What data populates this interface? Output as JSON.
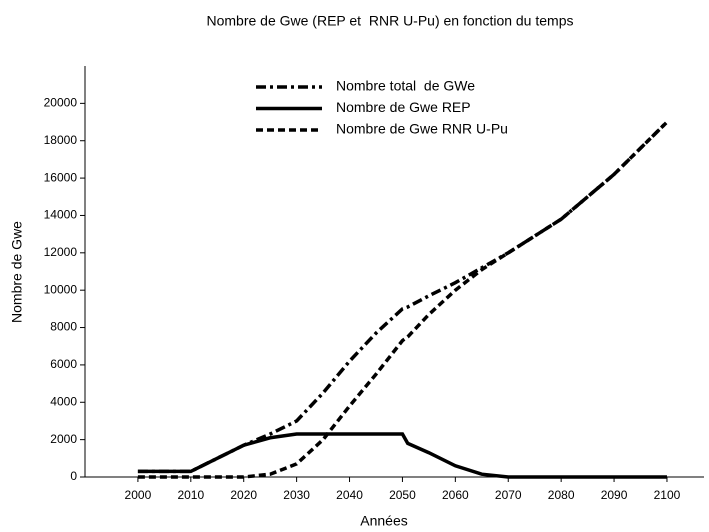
{
  "chart_data": {
    "type": "line",
    "title": "Nombre de Gwe (REP et  RNR U-Pu) en fonction du temps",
    "xlabel": "Années",
    "ylabel": "Nombre de Gwe",
    "x": [
      2000,
      2010,
      2015,
      2020,
      2025,
      2030,
      2035,
      2040,
      2045,
      2050,
      2051,
      2055,
      2060,
      2065,
      2070,
      2080,
      2090,
      2100
    ],
    "series": [
      {
        "name": "Nombre total  de GWe",
        "color": "#000000",
        "dash": "dashdot",
        "values": [
          300,
          300,
          1000,
          1700,
          2300,
          3000,
          4500,
          6200,
          7700,
          9000,
          9100,
          9700,
          10400,
          11200,
          12000,
          13800,
          16200,
          19000
        ]
      },
      {
        "name": "Nombre de Gwe REP",
        "color": "#000000",
        "dash": "solid",
        "values": [
          300,
          300,
          1000,
          1700,
          2100,
          2300,
          2300,
          2300,
          2300,
          2300,
          1800,
          1300,
          600,
          150,
          0,
          0,
          0,
          0
        ]
      },
      {
        "name": "Nombre de Gwe RNR U-Pu",
        "color": "#000000",
        "dash": "dashed",
        "values": [
          0,
          0,
          0,
          0,
          150,
          700,
          2000,
          3800,
          5500,
          7300,
          7500,
          8700,
          10000,
          11100,
          12000,
          13800,
          16200,
          19000
        ]
      }
    ],
    "xlim": [
      1990,
      2107
    ],
    "xticks": [
      2000,
      2010,
      2020,
      2030,
      2040,
      2050,
      2060,
      2070,
      2080,
      2090,
      2100
    ],
    "ylim": [
      0,
      22000
    ],
    "yticks": [
      0,
      2000,
      4000,
      6000,
      8000,
      10000,
      12000,
      14000,
      16000,
      18000,
      20000
    ],
    "legend": "upper center"
  }
}
